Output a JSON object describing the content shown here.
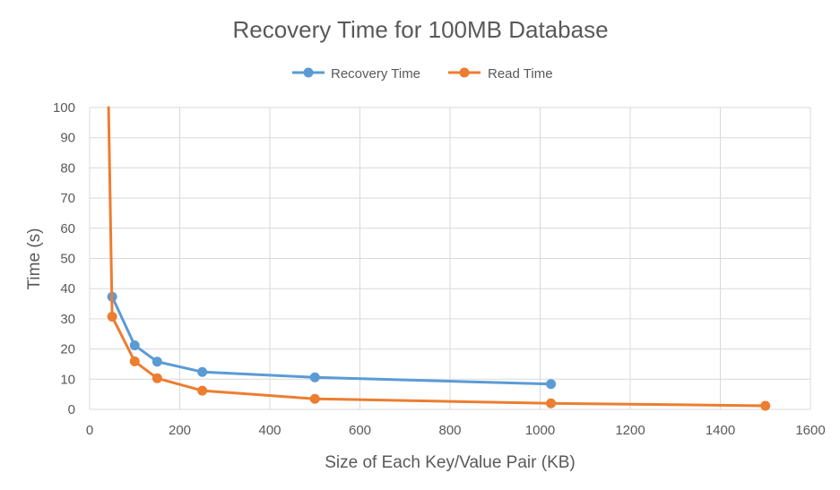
{
  "chart_data": {
    "type": "line",
    "title": "Recovery Time for 100MB Database",
    "xlabel": "Size of Each Key/Value Pair (KB)",
    "ylabel": "Time (s)",
    "xlim": [
      0,
      1600
    ],
    "ylim": [
      0,
      100
    ],
    "x_ticks": [
      0,
      200,
      400,
      600,
      800,
      1000,
      1200,
      1400,
      1600
    ],
    "y_ticks": [
      0,
      10,
      20,
      30,
      40,
      50,
      60,
      70,
      80,
      90,
      100
    ],
    "grid": true,
    "legend_position": "top",
    "series": [
      {
        "name": "Recovery Time",
        "color": "#5B9BD5",
        "points": [
          [
            50,
            37.3
          ],
          [
            100,
            21.2
          ],
          [
            150,
            15.8
          ],
          [
            250,
            12.4
          ],
          [
            500,
            10.6
          ],
          [
            1024,
            8.4
          ]
        ]
      },
      {
        "name": "Read Time",
        "color": "#ED7D31",
        "points": [
          [
            42,
            100
          ],
          [
            50,
            30.7
          ],
          [
            100,
            15.9
          ],
          [
            150,
            10.3
          ],
          [
            250,
            6.2
          ],
          [
            500,
            3.5
          ],
          [
            1024,
            2.0
          ],
          [
            1500,
            1.2
          ]
        ],
        "markers_from_index": 1
      }
    ]
  }
}
